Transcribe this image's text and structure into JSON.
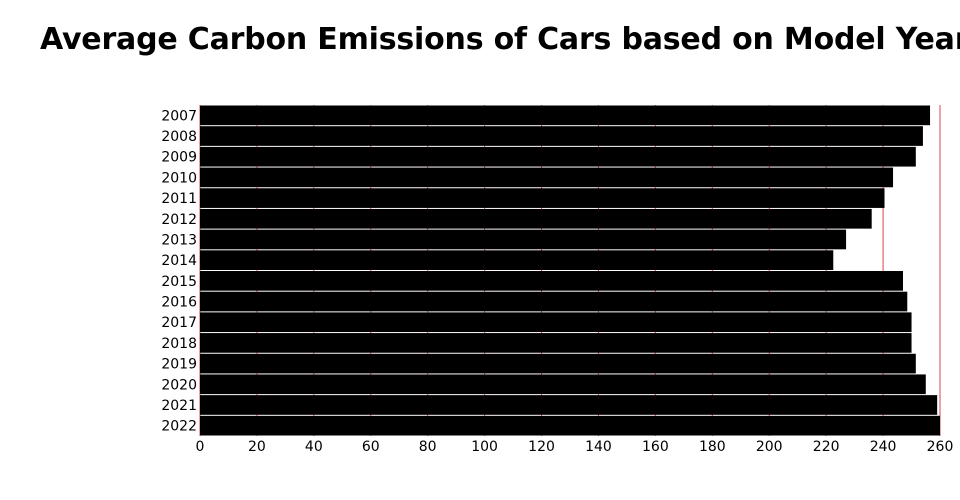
{
  "chart_data": {
    "type": "bar",
    "orientation": "horizontal",
    "title": "Average Carbon Emissions of Cars based on Model Year",
    "xlabel": "",
    "ylabel": "",
    "categories": [
      "2007",
      "2008",
      "2009",
      "2010",
      "2011",
      "2012",
      "2013",
      "2014",
      "2015",
      "2016",
      "2017",
      "2018",
      "2019",
      "2020",
      "2021",
      "2022"
    ],
    "values": [
      256.5,
      254,
      251.5,
      243.5,
      240.5,
      236,
      227,
      222.5,
      247,
      248.5,
      250,
      250,
      251.5,
      255,
      259,
      260
    ],
    "xlim": [
      0,
      260
    ],
    "x_ticks": [
      0,
      20,
      40,
      60,
      80,
      100,
      120,
      140,
      160,
      180,
      200,
      220,
      240,
      260
    ],
    "bar_color": "#000000",
    "grid_color": "#dd4444",
    "grid": true
  }
}
